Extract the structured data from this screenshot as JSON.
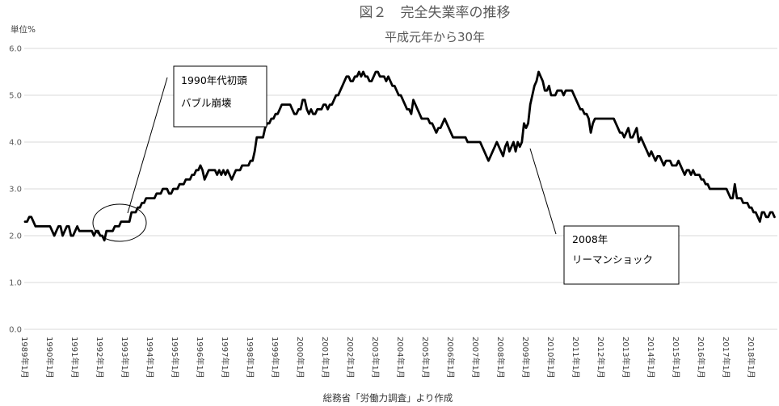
{
  "chart_data": {
    "type": "line",
    "title": "図２　完全失業率の推移",
    "subtitle": "平成元年から30年",
    "ylabel": "単位%",
    "xlabel": "",
    "ylim": [
      0,
      6
    ],
    "y_ticks": [
      "0.0",
      "1.0",
      "2.0",
      "3.0",
      "4.0",
      "5.0",
      "6.0"
    ],
    "x_tick_labels": [
      "1989年1月",
      "1990年1月",
      "1991年1月",
      "1992年1月",
      "1993年1月",
      "1994年1月",
      "1995年1月",
      "1996年1月",
      "1997年1月",
      "1998年1月",
      "1999年1月",
      "2000年1月",
      "2001年1月",
      "2002年1月",
      "2003年1月",
      "2004年1月",
      "2005年1月",
      "2006年1月",
      "2007年1月",
      "2008年1月",
      "2009年1月",
      "2010年1月",
      "2011年1月",
      "2012年1月",
      "2013年1月",
      "2014年1月",
      "2015年1月",
      "2016年1月",
      "2017年1月",
      "2018年1月"
    ],
    "grid": "horizontal",
    "legend": "none",
    "line_color": "#000000",
    "grid_color": "#d9d9d9",
    "title_color": "#595959",
    "data": [
      {
        "year": 1989,
        "monthly_values": [
          2.3,
          2.3,
          2.4,
          2.4,
          2.3,
          2.2,
          2.2,
          2.2,
          2.2,
          2.2,
          2.2,
          2.2
        ]
      },
      {
        "year": 1990,
        "monthly_values": [
          2.2,
          2.1,
          2.0,
          2.1,
          2.2,
          2.2,
          2.0,
          2.1,
          2.2,
          2.2,
          2.0,
          2.0
        ]
      },
      {
        "year": 1991,
        "monthly_values": [
          2.1,
          2.2,
          2.1,
          2.1,
          2.1,
          2.1,
          2.1,
          2.1,
          2.1,
          2.0,
          2.1,
          2.1
        ]
      },
      {
        "year": 1992,
        "monthly_values": [
          2.0,
          2.0,
          1.9,
          2.1,
          2.1,
          2.1,
          2.1,
          2.2,
          2.2,
          2.2,
          2.3,
          2.3
        ]
      },
      {
        "year": 1993,
        "monthly_values": [
          2.3,
          2.3,
          2.3,
          2.5,
          2.5,
          2.5,
          2.6,
          2.6,
          2.7,
          2.7,
          2.8,
          2.8
        ]
      },
      {
        "year": 1994,
        "monthly_values": [
          2.8,
          2.8,
          2.8,
          2.9,
          2.9,
          2.9,
          3.0,
          3.0,
          3.0,
          2.9,
          2.9,
          3.0
        ]
      },
      {
        "year": 1995,
        "monthly_values": [
          3.0,
          3.0,
          3.1,
          3.1,
          3.1,
          3.2,
          3.2,
          3.2,
          3.3,
          3.3,
          3.4,
          3.4
        ]
      },
      {
        "year": 1996,
        "monthly_values": [
          3.5,
          3.4,
          3.2,
          3.3,
          3.4,
          3.4,
          3.4,
          3.4,
          3.3,
          3.4,
          3.3,
          3.4
        ]
      },
      {
        "year": 1997,
        "monthly_values": [
          3.3,
          3.4,
          3.3,
          3.2,
          3.3,
          3.4,
          3.4,
          3.4,
          3.5,
          3.5,
          3.5,
          3.5
        ]
      },
      {
        "year": 1998,
        "monthly_values": [
          3.6,
          3.6,
          3.8,
          4.1,
          4.1,
          4.1,
          4.1,
          4.3,
          4.4,
          4.4,
          4.5,
          4.5
        ]
      },
      {
        "year": 1999,
        "monthly_values": [
          4.6,
          4.6,
          4.7,
          4.8,
          4.8,
          4.8,
          4.8,
          4.8,
          4.7,
          4.6,
          4.6,
          4.7
        ]
      },
      {
        "year": 2000,
        "monthly_values": [
          4.7,
          4.9,
          4.9,
          4.7,
          4.6,
          4.7,
          4.6,
          4.6,
          4.7,
          4.7,
          4.7,
          4.8
        ]
      },
      {
        "year": 2001,
        "monthly_values": [
          4.8,
          4.7,
          4.8,
          4.8,
          4.9,
          5.0,
          5.0,
          5.1,
          5.2,
          5.3,
          5.4,
          5.4
        ]
      },
      {
        "year": 2002,
        "monthly_values": [
          5.3,
          5.3,
          5.4,
          5.4,
          5.5,
          5.4,
          5.5,
          5.4,
          5.4,
          5.3,
          5.3,
          5.4
        ]
      },
      {
        "year": 2003,
        "monthly_values": [
          5.5,
          5.5,
          5.4,
          5.4,
          5.4,
          5.3,
          5.4,
          5.3,
          5.2,
          5.2,
          5.1,
          5.0
        ]
      },
      {
        "year": 2004,
        "monthly_values": [
          5.0,
          4.9,
          4.8,
          4.7,
          4.7,
          4.6,
          4.9,
          4.8,
          4.7,
          4.6,
          4.5,
          4.5
        ]
      },
      {
        "year": 2005,
        "monthly_values": [
          4.5,
          4.5,
          4.4,
          4.4,
          4.3,
          4.2,
          4.3,
          4.3,
          4.4,
          4.5,
          4.4,
          4.3
        ]
      },
      {
        "year": 2006,
        "monthly_values": [
          4.2,
          4.1,
          4.1,
          4.1,
          4.1,
          4.1,
          4.1,
          4.1,
          4.0,
          4.0,
          4.0,
          4.0
        ]
      },
      {
        "year": 2007,
        "monthly_values": [
          4.0,
          4.0,
          4.0,
          3.9,
          3.8,
          3.7,
          3.6,
          3.7,
          3.8,
          3.9,
          4.0,
          3.9
        ]
      },
      {
        "year": 2008,
        "monthly_values": [
          3.8,
          3.7,
          3.9,
          4.0,
          3.8,
          3.9,
          4.0,
          3.8,
          4.0,
          3.9,
          4.0,
          4.4
        ]
      },
      {
        "year": 2009,
        "monthly_values": [
          4.3,
          4.4,
          4.8,
          5.0,
          5.2,
          5.3,
          5.5,
          5.4,
          5.3,
          5.1,
          5.1,
          5.2
        ]
      },
      {
        "year": 2010,
        "monthly_values": [
          5.0,
          5.0,
          5.0,
          5.1,
          5.1,
          5.1,
          5.0,
          5.1,
          5.1,
          5.1,
          5.1,
          5.0
        ]
      },
      {
        "year": 2011,
        "monthly_values": [
          4.9,
          4.8,
          4.7,
          4.7,
          4.6,
          4.6,
          4.5,
          4.2,
          4.4,
          4.5,
          4.5,
          4.5
        ]
      },
      {
        "year": 2012,
        "monthly_values": [
          4.5,
          4.5,
          4.5,
          4.5,
          4.5,
          4.5,
          4.5,
          4.4,
          4.3,
          4.2,
          4.2,
          4.1
        ]
      },
      {
        "year": 2013,
        "monthly_values": [
          4.2,
          4.3,
          4.1,
          4.1,
          4.2,
          4.3,
          4.0,
          4.1,
          4.0,
          3.9,
          3.8,
          3.7
        ]
      },
      {
        "year": 2014,
        "monthly_values": [
          3.8,
          3.7,
          3.6,
          3.7,
          3.7,
          3.6,
          3.5,
          3.6,
          3.6,
          3.6,
          3.5,
          3.5
        ]
      },
      {
        "year": 2015,
        "monthly_values": [
          3.5,
          3.6,
          3.5,
          3.4,
          3.3,
          3.4,
          3.4,
          3.3,
          3.4,
          3.3,
          3.3,
          3.3
        ]
      },
      {
        "year": 2016,
        "monthly_values": [
          3.2,
          3.2,
          3.1,
          3.1,
          3.0,
          3.0,
          3.0,
          3.0,
          3.0,
          3.0,
          3.0,
          3.0
        ]
      },
      {
        "year": 2017,
        "monthly_values": [
          3.0,
          2.9,
          2.8,
          2.8,
          3.1,
          2.8,
          2.8,
          2.8,
          2.7,
          2.7,
          2.7,
          2.6
        ]
      },
      {
        "year": 2018,
        "monthly_values": [
          2.6,
          2.5,
          2.5,
          2.4,
          2.3,
          2.5,
          2.5,
          2.4,
          2.4,
          2.5,
          2.5,
          2.4
        ]
      }
    ],
    "annotations": [
      {
        "lines": [
          "1990年代初頭",
          "バブル崩壊"
        ]
      },
      {
        "lines": [
          "2008年",
          "リーマンショック"
        ]
      }
    ],
    "source": "総務省「労働力調査」より作成"
  }
}
